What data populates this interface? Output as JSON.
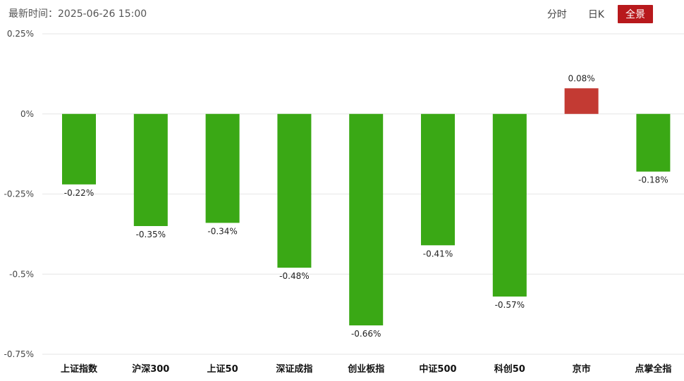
{
  "header": {
    "time_label": "最新时间",
    "time_value": "2025-06-26 15:00"
  },
  "tabs": [
    {
      "label": "分时",
      "active": false
    },
    {
      "label": "日K",
      "active": false
    },
    {
      "label": "全景",
      "active": true
    }
  ],
  "colors": {
    "up": "#c33a33",
    "down": "#3aa815",
    "grid": "#e6e6e6",
    "active_tab": "#b8191c"
  },
  "chart_data": {
    "type": "bar",
    "categories": [
      "上证指数",
      "沪深300",
      "上证50",
      "深证成指",
      "创业板指",
      "中证500",
      "科创50",
      "京市",
      "点掌全指"
    ],
    "values": [
      -0.22,
      -0.35,
      -0.34,
      -0.48,
      -0.66,
      -0.41,
      -0.57,
      0.08,
      -0.18
    ],
    "data_labels": [
      "-0.22%",
      "-0.35%",
      "-0.34%",
      "-0.48%",
      "-0.66%",
      "-0.41%",
      "-0.57%",
      "0.08%",
      "-0.18%"
    ],
    "yticks": [
      0.25,
      0,
      -0.25,
      -0.5,
      -0.75
    ],
    "ytick_labels": [
      "0.25%",
      "0%",
      "-0.25%",
      "-0.5%",
      "-0.75%"
    ],
    "ylim": [
      -0.75,
      0.25
    ],
    "grid": true,
    "legend": "none"
  }
}
